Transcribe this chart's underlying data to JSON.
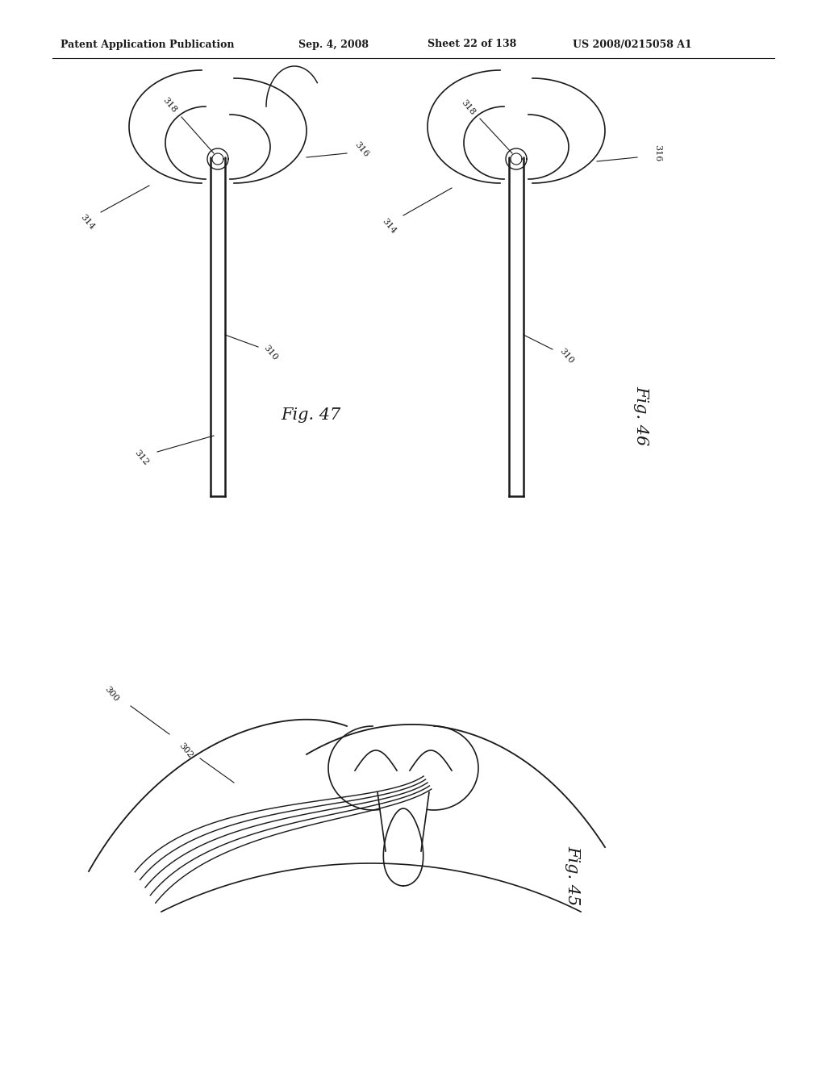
{
  "bg_color": "#ffffff",
  "header_text": "Patent Application Publication",
  "header_date": "Sep. 4, 2008",
  "header_sheet": "Sheet 22 of 138",
  "header_patent": "US 2008/0215058 A1",
  "fig45_label": "Fig. 45",
  "fig46_label": "Fig. 46",
  "fig47_label": "Fig. 47",
  "color": "#1a1a1a",
  "lw": 1.2,
  "lw_thick": 1.8
}
